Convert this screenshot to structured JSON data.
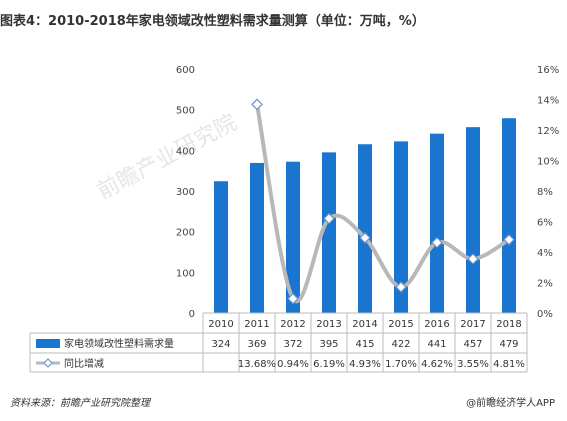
{
  "title": "图表4：2010-2018年家电领域改性塑料需求量测算（单位：万吨，%）",
  "source": "资料来源：前瞻产业研究院整理",
  "brand": "@前瞻经济学人APP",
  "watermark": "前瞻产业研究院",
  "colors": {
    "bar": "#1a75cf",
    "line": "#b8b8b8",
    "marker_stroke": "#6a8fc5",
    "marker_fill": "#ffffff"
  },
  "chart_data": {
    "type": "bar",
    "categories": [
      "2010",
      "2011",
      "2012",
      "2013",
      "2014",
      "2015",
      "2016",
      "2017",
      "2018"
    ],
    "series": [
      {
        "name": "家电领域改性塑料需求量",
        "type": "bar",
        "axis": "left",
        "values": [
          324,
          369,
          372,
          395,
          415,
          422,
          441,
          457,
          479
        ],
        "labels": [
          "324",
          "369",
          "372",
          "395",
          "415",
          "422",
          "441",
          "457",
          "479"
        ]
      },
      {
        "name": "同比增减",
        "type": "line",
        "axis": "right",
        "values": [
          null,
          13.68,
          0.94,
          6.19,
          4.93,
          1.7,
          4.62,
          3.55,
          4.81
        ],
        "labels": [
          "",
          "13.68%",
          "0.94%",
          "6.19%",
          "4.93%",
          "1.70%",
          "4.62%",
          "3.55%",
          "4.81%"
        ]
      }
    ],
    "y_left": {
      "min": 0,
      "max": 600,
      "ticks": [
        "0",
        "100",
        "200",
        "300",
        "400",
        "500",
        "600"
      ]
    },
    "y_right": {
      "min": 0,
      "max": 16,
      "ticks": [
        "0%",
        "2%",
        "4%",
        "6%",
        "8%",
        "10%",
        "12%",
        "14%",
        "16%"
      ]
    },
    "grid": false,
    "legend": "data-table-below"
  }
}
